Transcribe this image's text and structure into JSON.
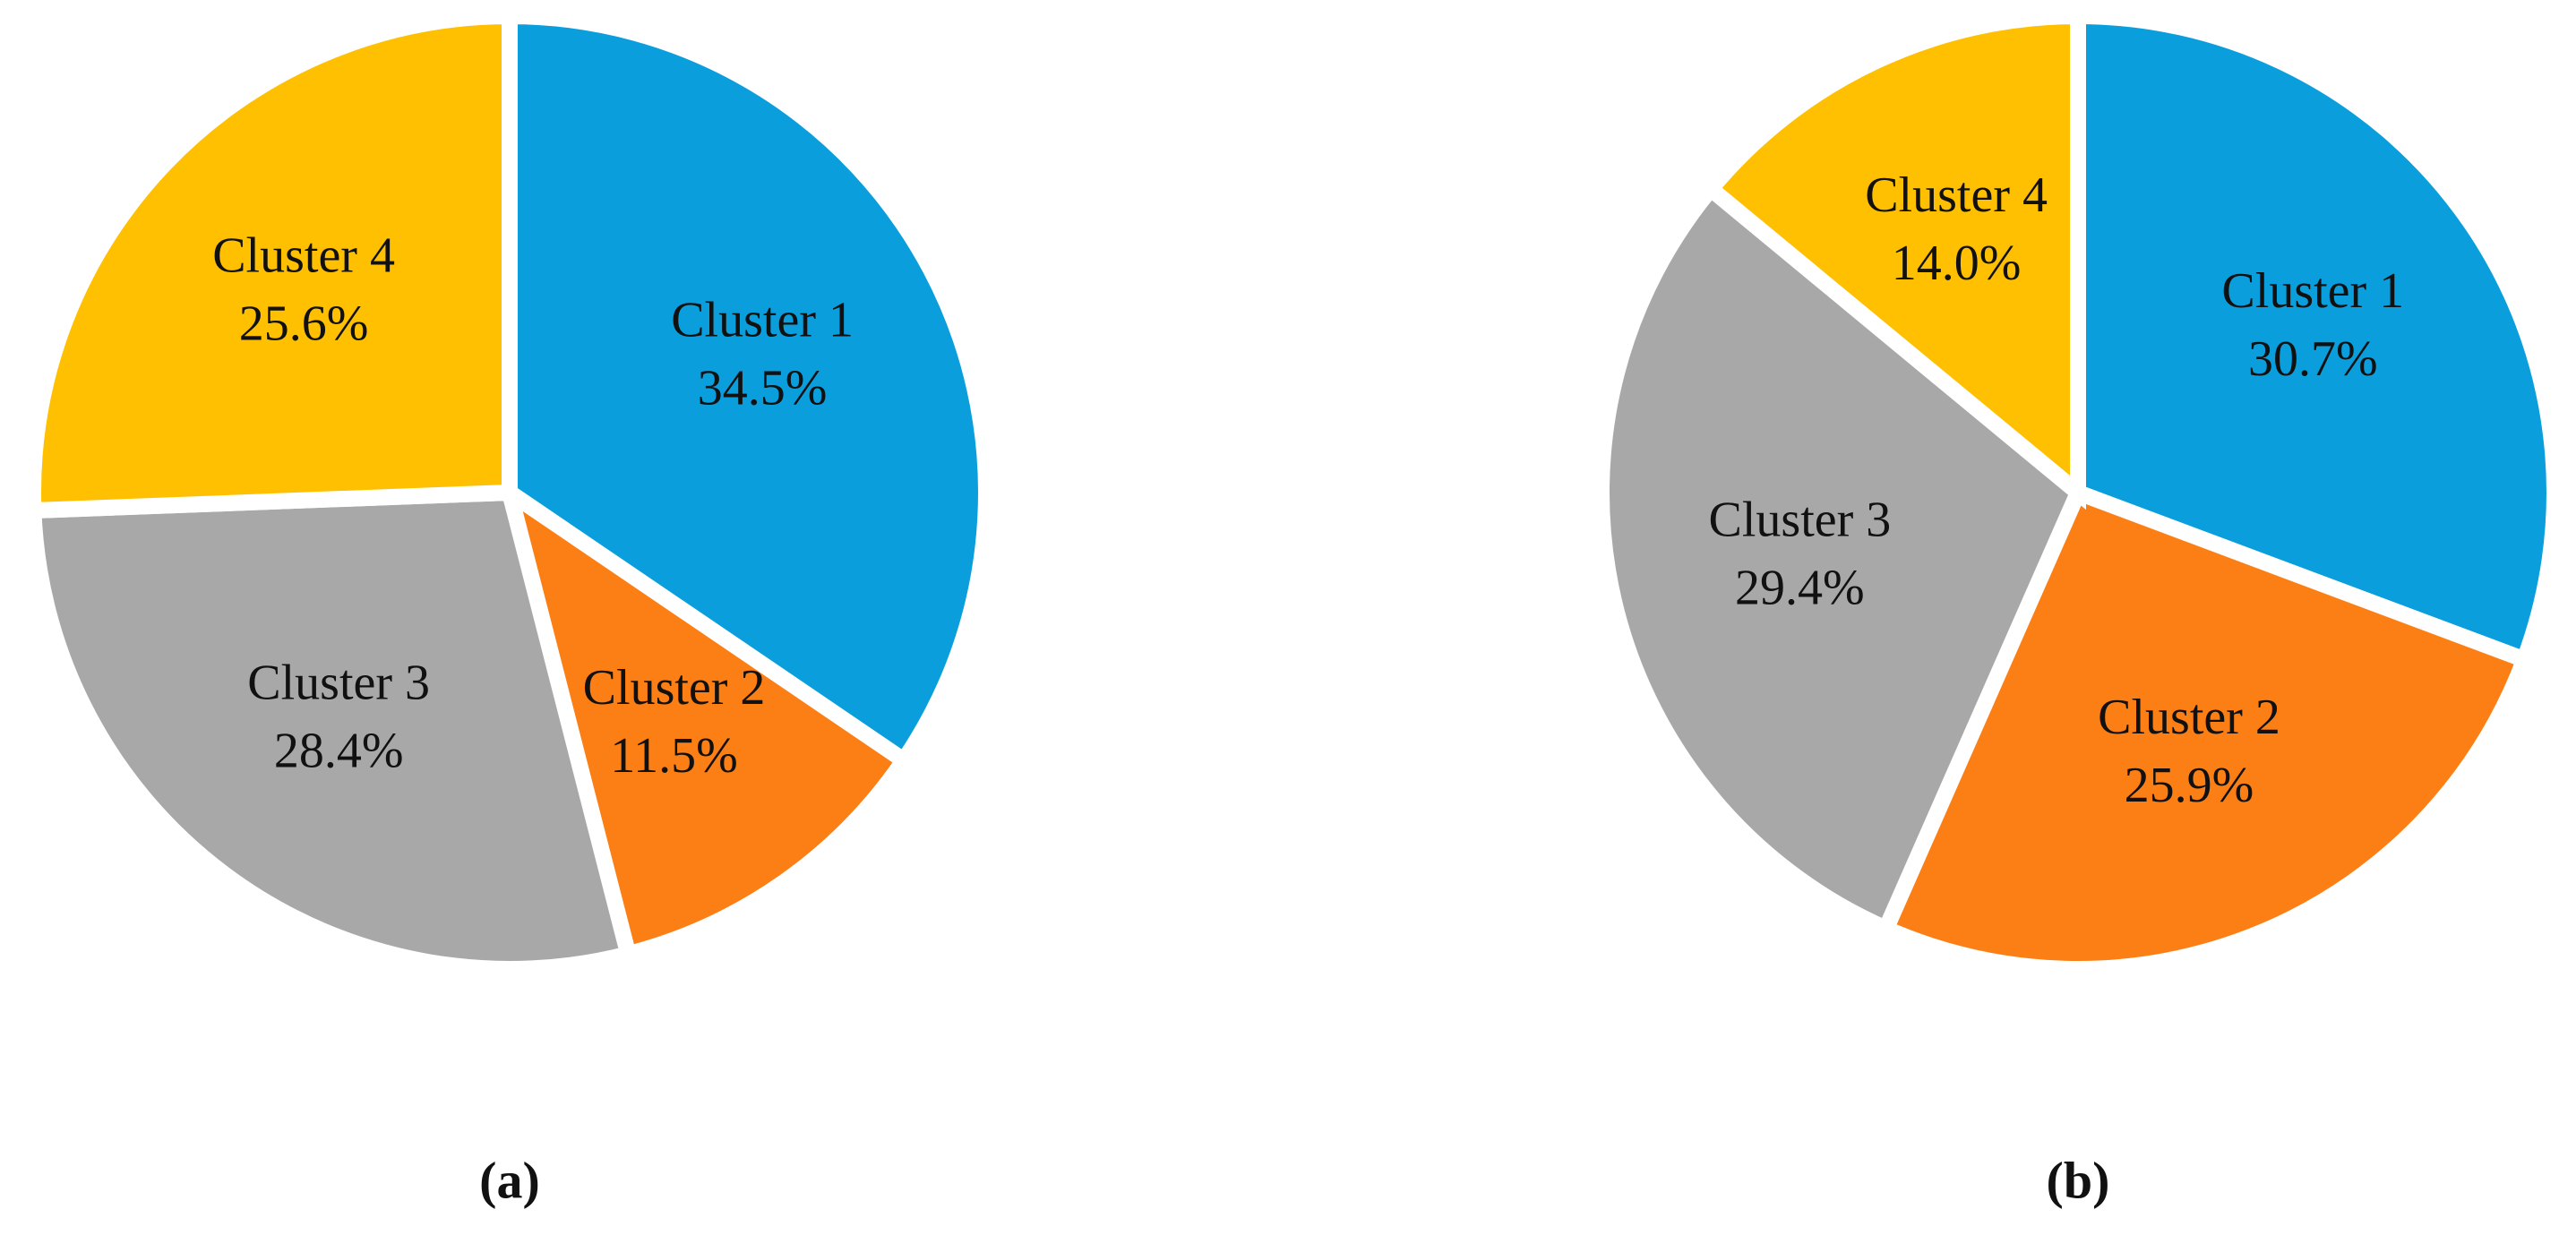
{
  "chart_data": [
    {
      "type": "pie",
      "title": "(a)",
      "categories": [
        "Cluster 1",
        "Cluster 2",
        "Cluster 3",
        "Cluster 4"
      ],
      "values": [
        34.5,
        11.5,
        28.4,
        25.6
      ],
      "value_labels": [
        "34.5%",
        "11.5%",
        "28.4%",
        "25.6%"
      ],
      "colors": [
        "#0a9fdc",
        "#fb7f14",
        "#a8a8a8",
        "#fec001"
      ]
    },
    {
      "type": "pie",
      "title": "(b)",
      "categories": [
        "Cluster 1",
        "Cluster 2",
        "Cluster 3",
        "Cluster 4"
      ],
      "values": [
        30.7,
        25.9,
        29.4,
        14.0
      ],
      "value_labels": [
        "30.7%",
        "25.9%",
        "29.4%",
        "14.0%"
      ],
      "colors": [
        "#0a9fdc",
        "#fb7f14",
        "#a8a8a8",
        "#fec001"
      ]
    }
  ]
}
